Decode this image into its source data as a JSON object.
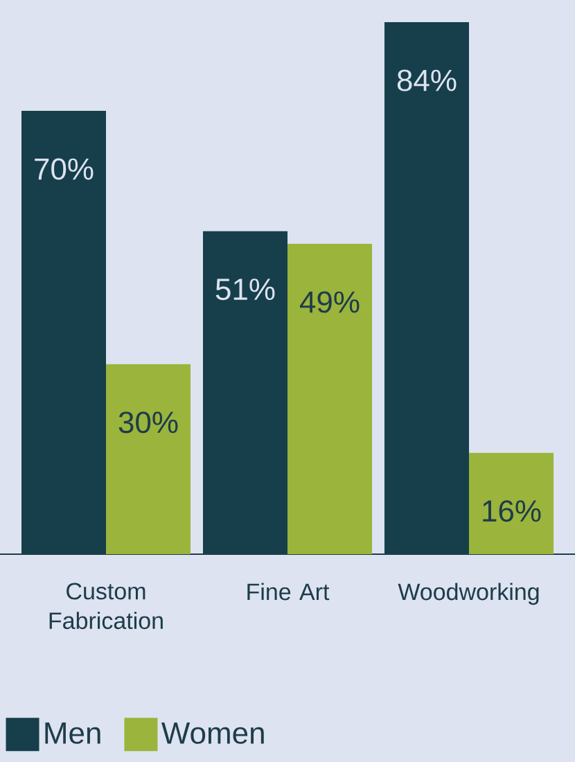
{
  "chart_data": {
    "type": "bar",
    "categories": [
      "Custom Fabrication",
      "Fine Art",
      "Woodworking"
    ],
    "series": [
      {
        "name": "Men",
        "color": "#163f4b",
        "values": [
          70,
          51,
          84
        ],
        "value_labels": [
          "70%",
          "51%",
          "84%"
        ]
      },
      {
        "name": "Women",
        "color": "#9bb43c",
        "values": [
          30,
          49,
          16
        ],
        "value_labels": [
          "30%",
          "49%",
          "16%"
        ]
      }
    ],
    "legend": "bottom left"
  }
}
